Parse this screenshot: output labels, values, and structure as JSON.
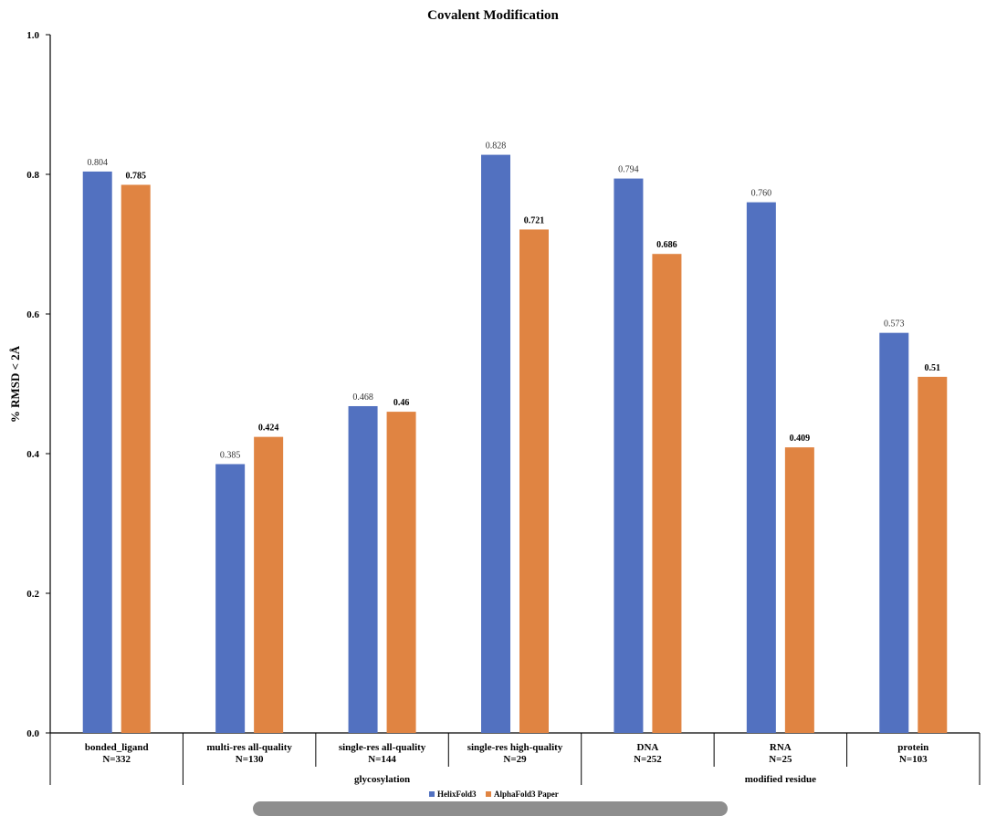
{
  "chart_data": {
    "type": "bar",
    "title": "Covalent Modification",
    "ylabel": "% RMSD < 2Å",
    "xlabel": "",
    "ylim": [
      0,
      1.0
    ],
    "yticks": [
      "0.0",
      "0.2",
      "0.4",
      "0.6",
      "0.8",
      "1.0"
    ],
    "categories": [
      {
        "line1": "bonded_ligand",
        "line2": "N=332"
      },
      {
        "line1": "multi-res all-quality",
        "line2": "N=130"
      },
      {
        "line1": "single-res all-quality",
        "line2": "N=144"
      },
      {
        "line1": "single-res high-quality",
        "line2": "N=29"
      },
      {
        "line1": "DNA",
        "line2": "N=252"
      },
      {
        "line1": "RNA",
        "line2": "N=25"
      },
      {
        "line1": "protein",
        "line2": "N=103"
      }
    ],
    "groups": [
      {
        "label": "",
        "categories": [
          0
        ]
      },
      {
        "label": "glycosylation",
        "categories": [
          1,
          2,
          3
        ]
      },
      {
        "label": "modified residue",
        "categories": [
          4,
          5,
          6
        ]
      }
    ],
    "series": [
      {
        "name": "HelixFold3",
        "color": "#5271c0",
        "values": [
          0.804,
          0.385,
          0.468,
          0.828,
          0.794,
          0.76,
          0.573
        ],
        "labels": [
          "0.804",
          "0.385",
          "0.468",
          "0.828",
          "0.794",
          "0.760",
          "0.573"
        ]
      },
      {
        "name": "AlphaFold3 Paper",
        "color": "#e08442",
        "values": [
          0.785,
          0.424,
          0.46,
          0.721,
          0.686,
          0.409,
          0.51
        ],
        "labels": [
          "0.785",
          "0.424",
          "0.46",
          "0.721",
          "0.686",
          "0.409",
          "0.51"
        ]
      }
    ],
    "grid": false,
    "legend_position": "bottom"
  }
}
